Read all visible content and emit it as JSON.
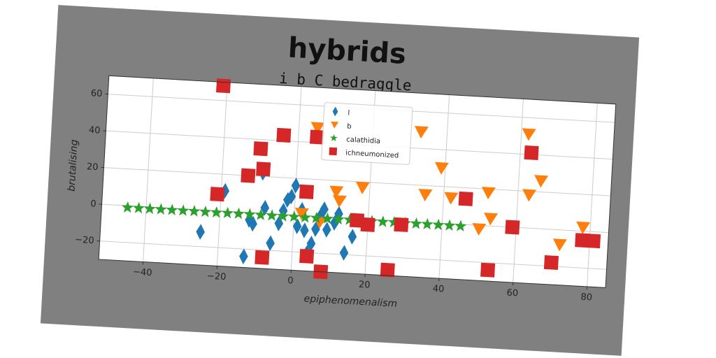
{
  "chart_data": {
    "type": "scatter",
    "title": "hybrids",
    "subtitle": "i b C bedraggle",
    "xlabel": "epiphenomenalism",
    "ylabel": "brutalising",
    "xlim": [
      -52,
      85
    ],
    "ylim": [
      -30,
      70
    ],
    "xticks": [
      -40,
      -20,
      0,
      20,
      40,
      60,
      80
    ],
    "yticks": [
      -20,
      0,
      20,
      40,
      60
    ],
    "grid": true,
    "legend_position": "top-center",
    "colors": {
      "frame": "#808080",
      "plot_bg": "#ffffff",
      "grid": "#cccccc",
      "series_l": "#1f77b4",
      "series_b": "#ff7f0e",
      "series_calathidia": "#2ca02c",
      "series_ichneumonized": "#d62728"
    },
    "series": [
      {
        "name": "l",
        "marker": "diamond",
        "color": "#1f77b4",
        "points": [
          [
            -25,
            -12
          ],
          [
            -19,
            11
          ],
          [
            -13,
            -24
          ],
          [
            -12,
            -4
          ],
          [
            -11,
            -6
          ],
          [
            -9,
            22
          ],
          [
            -8,
            3
          ],
          [
            -6,
            -16
          ],
          [
            -4,
            -5
          ],
          [
            -3,
            2
          ],
          [
            -2,
            8
          ],
          [
            -1,
            10
          ],
          [
            0,
            16
          ],
          [
            1,
            -6
          ],
          [
            2,
            3
          ],
          [
            3,
            -8
          ],
          [
            4,
            -20
          ],
          [
            5,
            -15
          ],
          [
            6,
            -7
          ],
          [
            7,
            0
          ],
          [
            8,
            4
          ],
          [
            9,
            -7
          ],
          [
            11,
            -3
          ],
          [
            12,
            2
          ],
          [
            14,
            -19
          ],
          [
            16,
            -10
          ]
        ]
      },
      {
        "name": "b",
        "marker": "triangle-down",
        "color": "#ff7f0e",
        "points": [
          [
            2,
            1
          ],
          [
            5,
            48
          ],
          [
            7,
            -3
          ],
          [
            11,
            14
          ],
          [
            12,
            9
          ],
          [
            18,
            17
          ],
          [
            33,
            49
          ],
          [
            35,
            15
          ],
          [
            39,
            30
          ],
          [
            42,
            14
          ],
          [
            50,
            -2
          ],
          [
            52,
            18
          ],
          [
            53,
            4
          ],
          [
            62,
            51
          ],
          [
            63,
            18
          ],
          [
            66,
            26
          ],
          [
            72,
            -8
          ],
          [
            78,
            2
          ]
        ]
      },
      {
        "name": "calathidia",
        "marker": "star",
        "color": "#2ca02c",
        "points": [
          [
            -45,
            -1
          ],
          [
            -42,
            -1
          ],
          [
            -39,
            -1
          ],
          [
            -36,
            -1
          ],
          [
            -33,
            -1
          ],
          [
            -30,
            -1
          ],
          [
            -27,
            -1
          ],
          [
            -24,
            -1
          ],
          [
            -21,
            -1
          ],
          [
            -18,
            -1
          ],
          [
            -15,
            -1
          ],
          [
            -12,
            -1
          ],
          [
            -9,
            -1
          ],
          [
            -6,
            -1
          ],
          [
            -3,
            -1
          ],
          [
            0,
            -1
          ],
          [
            3,
            -1
          ],
          [
            6,
            -1
          ],
          [
            9,
            -1
          ],
          [
            12,
            -1
          ],
          [
            15,
            -1
          ],
          [
            18,
            -1
          ],
          [
            21,
            -1
          ],
          [
            24,
            -1
          ],
          [
            27,
            -1
          ],
          [
            30,
            -1
          ],
          [
            33,
            -1
          ],
          [
            36,
            -1
          ],
          [
            39,
            -1
          ],
          [
            42,
            -1
          ],
          [
            45,
            -1
          ]
        ]
      },
      {
        "name": "ichneumonized",
        "marker": "square",
        "color": "#d62728",
        "points": [
          [
            -21,
            68
          ],
          [
            -21,
            9
          ],
          [
            -13,
            20
          ],
          [
            -10,
            35
          ],
          [
            -9,
            24
          ],
          [
            -8,
            -24
          ],
          [
            -4,
            43
          ],
          [
            3,
            13
          ],
          [
            4,
            -22
          ],
          [
            5,
            43
          ],
          [
            8,
            -30
          ],
          [
            17,
            -1
          ],
          [
            20,
            -3
          ],
          [
            26,
            -27
          ],
          [
            29,
            -2
          ],
          [
            46,
            14
          ],
          [
            53,
            -24
          ],
          [
            59,
            0
          ],
          [
            63,
            41
          ],
          [
            70,
            -18
          ],
          [
            78,
            -5
          ],
          [
            81,
            -5
          ]
        ]
      }
    ]
  }
}
